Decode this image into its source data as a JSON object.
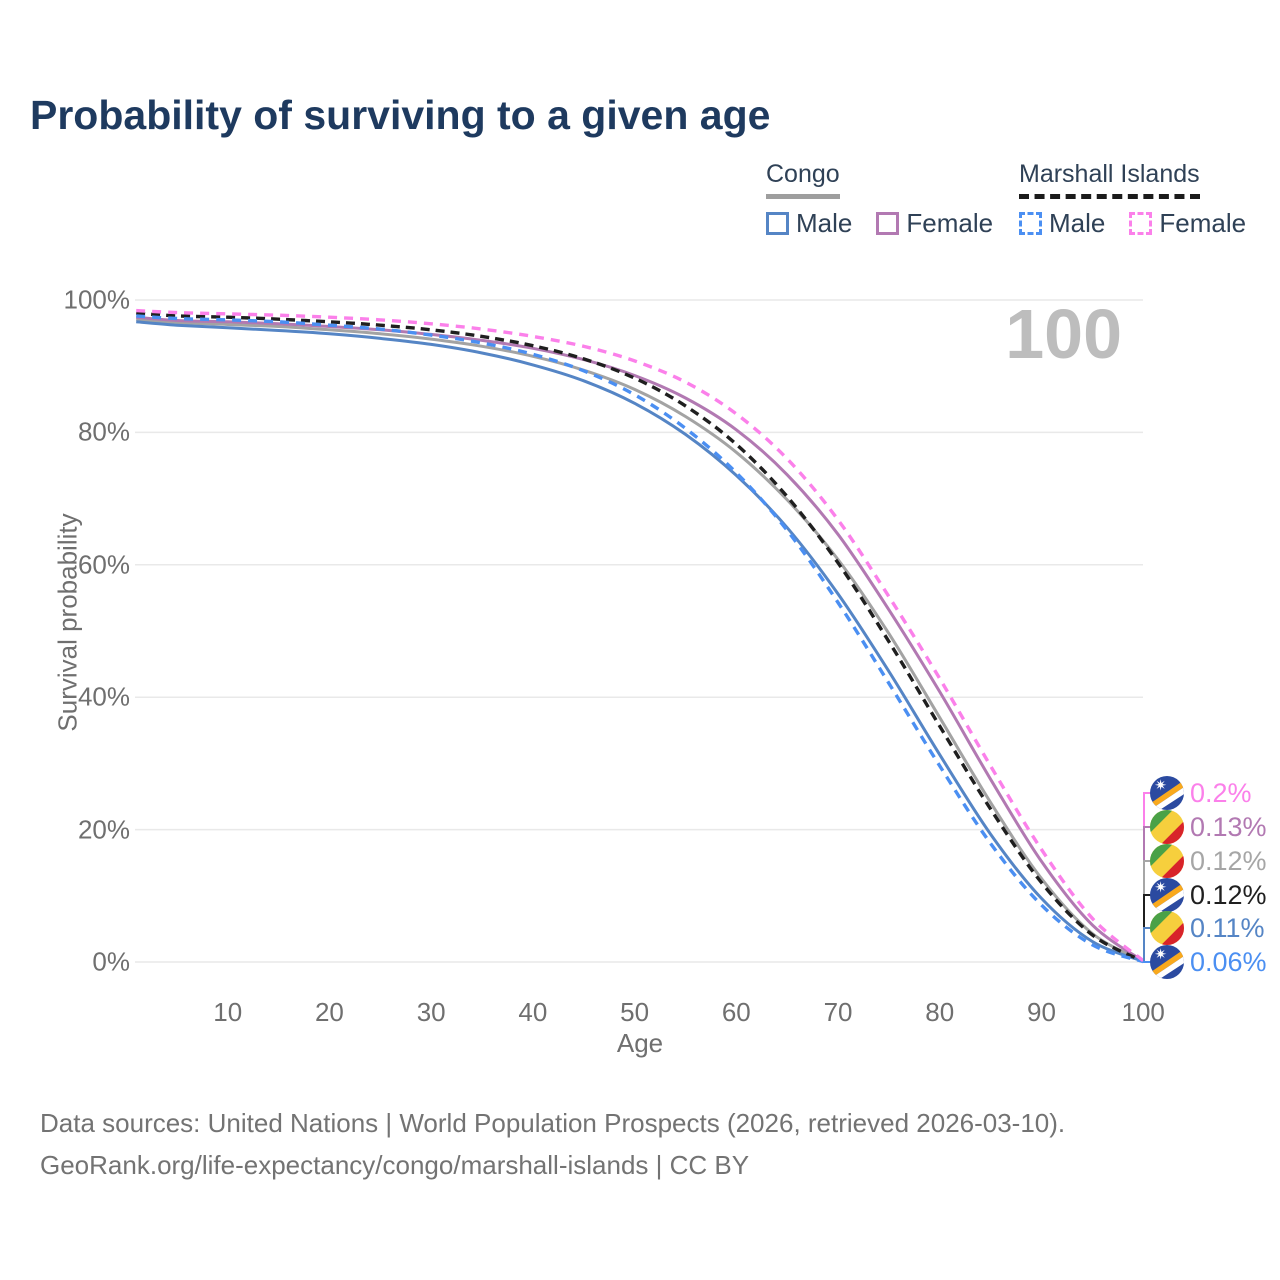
{
  "title": "Probability of surviving to a given age",
  "legend": {
    "groups": [
      {
        "name": "Congo",
        "line_style": "solid",
        "underline_color": "#9e9e9e",
        "items": [
          {
            "label": "Male",
            "color": "#5585c5",
            "dashed": false
          },
          {
            "label": "Female",
            "color": "#b279b2",
            "dashed": false
          }
        ]
      },
      {
        "name": "Marshall Islands",
        "line_style": "dashed",
        "underline_color": "#1b1b1b",
        "items": [
          {
            "label": "Male",
            "color": "#4b8ff2",
            "dashed": true
          },
          {
            "label": "Female",
            "color": "#fb80ea",
            "dashed": true
          }
        ]
      }
    ]
  },
  "axes": {
    "ylabel": "Survival probability",
    "xlabel": "Age",
    "yticks": [
      "100%",
      "80%",
      "60%",
      "40%",
      "20%",
      "0%"
    ],
    "xticks": [
      "10",
      "20",
      "30",
      "40",
      "50",
      "60",
      "70",
      "80",
      "90",
      "100"
    ]
  },
  "hover_age": "100",
  "end_labels": [
    {
      "value": "0.2%",
      "color": "#fb80ea",
      "flag": "marshall-islands",
      "series": "Marshall Islands Female"
    },
    {
      "value": "0.13%",
      "color": "#b279b2",
      "flag": "congo",
      "series": "Congo Female"
    },
    {
      "value": "0.12%",
      "color": "#a6a6a6",
      "flag": "congo",
      "series": "Congo"
    },
    {
      "value": "0.12%",
      "color": "#1f1f1f",
      "flag": "marshall-islands",
      "series": "Marshall Islands"
    },
    {
      "value": "0.11%",
      "color": "#5585c5",
      "flag": "congo",
      "series": "Congo Male"
    },
    {
      "value": "0.06%",
      "color": "#4b8ff2",
      "flag": "marshall-islands",
      "series": "Marshall Islands Male"
    }
  ],
  "footer": {
    "line1": "Data sources: United Nations | World Population Prospects (2026, retrieved 2026-03-10).",
    "line2": "GeoRank.org/life-expectancy/congo/marshall-islands | CC BY"
  },
  "chart_data": {
    "type": "line",
    "title": "Probability of surviving to a given age",
    "xlabel": "Age",
    "ylabel": "Survival probability",
    "xlim": [
      0,
      100
    ],
    "ylim": [
      0,
      100
    ],
    "grid": "horizontal",
    "legend_position": "top-right",
    "x_ages": [
      1,
      5,
      10,
      15,
      20,
      25,
      30,
      35,
      40,
      45,
      50,
      55,
      60,
      65,
      70,
      75,
      80,
      85,
      90,
      95,
      100
    ],
    "series": [
      {
        "name": "Congo",
        "country": "Congo",
        "color": "#a3a3a3",
        "dashed": false,
        "values": [
          97.1,
          96.6,
          96.3,
          96.0,
          95.5,
          94.9,
          94.1,
          93.0,
          91.5,
          89.4,
          86.5,
          82.4,
          77.0,
          69.8,
          60.8,
          49.6,
          36.9,
          24.1,
          12.6,
          4.3,
          0.12
        ]
      },
      {
        "name": "Congo Female",
        "country": "Congo",
        "color": "#b279b2",
        "dashed": false,
        "values": [
          97.4,
          96.9,
          96.7,
          96.4,
          96.0,
          95.5,
          94.8,
          93.9,
          92.7,
          91.0,
          88.6,
          85.2,
          80.4,
          73.6,
          64.6,
          53.2,
          40.8,
          27.6,
          15.2,
          5.6,
          0.13
        ]
      },
      {
        "name": "Congo Male",
        "country": "Congo",
        "color": "#5585c5",
        "dashed": false,
        "values": [
          96.7,
          96.2,
          95.8,
          95.4,
          94.9,
          94.2,
          93.3,
          92.0,
          90.2,
          87.8,
          84.4,
          79.7,
          73.5,
          65.6,
          55.6,
          43.9,
          31.3,
          19.3,
          9.6,
          3.1,
          0.11
        ]
      },
      {
        "name": "Marshall Islands",
        "country": "Marshall Islands",
        "color": "#1f1f1f",
        "dashed": true,
        "values": [
          98.0,
          97.6,
          97.4,
          97.1,
          96.7,
          96.2,
          95.5,
          94.5,
          93.1,
          91.1,
          88.2,
          84.0,
          78.2,
          70.3,
          60.3,
          48.4,
          35.6,
          23.1,
          12.0,
          4.1,
          0.12
        ]
      },
      {
        "name": "Marshall Islands Male",
        "country": "Marshall Islands",
        "color": "#4b8ff2",
        "dashed": true,
        "values": [
          97.6,
          97.2,
          97.0,
          96.7,
          96.2,
          95.6,
          94.7,
          93.5,
          91.8,
          89.3,
          85.7,
          80.6,
          73.9,
          65.2,
          54.3,
          42.1,
          29.6,
          17.9,
          8.6,
          2.6,
          0.06
        ]
      },
      {
        "name": "Marshall Islands Female",
        "country": "Marshall Islands",
        "color": "#fb80ea",
        "dashed": true,
        "values": [
          98.4,
          98.1,
          97.9,
          97.7,
          97.4,
          97.0,
          96.4,
          95.6,
          94.5,
          93.0,
          90.8,
          87.6,
          82.8,
          76.0,
          66.8,
          55.2,
          42.8,
          29.6,
          17.0,
          6.6,
          0.2
        ]
      }
    ]
  }
}
